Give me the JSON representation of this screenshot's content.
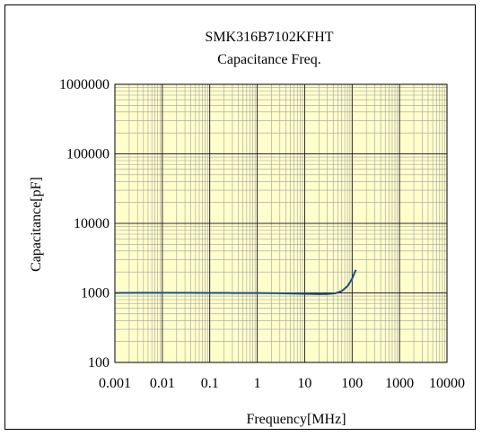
{
  "chart_data": {
    "type": "line",
    "title": "SMK316B7102KFHT",
    "subtitle": "Capacitance Freq.",
    "xlabel": "Frequency[MHz]",
    "ylabel": "Capacitance[pF]",
    "x_scale": "log",
    "y_scale": "log",
    "xlim": [
      0.001,
      10000
    ],
    "ylim": [
      100,
      1000000
    ],
    "x_ticks": [
      0.001,
      0.01,
      0.1,
      1,
      10,
      100,
      1000,
      10000
    ],
    "x_tick_labels": [
      "0.001",
      "0.01",
      "0.1",
      "1",
      "10",
      "100",
      "1000",
      "10000"
    ],
    "y_ticks": [
      100,
      1000,
      10000,
      100000,
      1000000
    ],
    "y_tick_labels": [
      "100",
      "1000",
      "10000",
      "100000",
      "1000000"
    ],
    "grid": true,
    "plot_background": "#ffffcc",
    "grid_color": "#a0a0a0",
    "series": [
      {
        "color": "#1f4e79",
        "x": [
          0.001,
          0.003,
          0.01,
          0.03,
          0.1,
          0.3,
          1,
          3,
          10,
          20,
          30,
          45,
          60,
          80,
          100,
          120
        ],
        "y": [
          1000,
          1005,
          1005,
          1003,
          1000,
          998,
          995,
          990,
          970,
          960,
          965,
          990,
          1060,
          1250,
          1600,
          2150
        ]
      }
    ]
  }
}
